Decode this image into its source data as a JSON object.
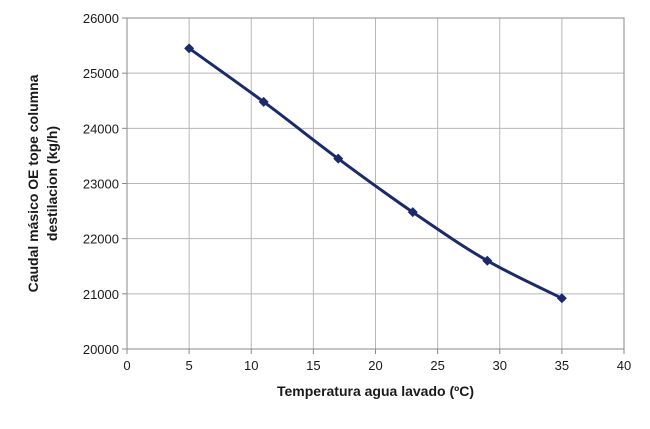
{
  "chart_data": {
    "type": "line",
    "title": "",
    "xlabel": "Temperatura agua lavado (ºC)",
    "ylabel_lines": [
      "Caudal másico  OE tope columna",
      "destilacion (kg/h)"
    ],
    "xlim": [
      0,
      40
    ],
    "ylim": [
      20000,
      26000
    ],
    "x_ticks": [
      0,
      5,
      10,
      15,
      20,
      25,
      30,
      35,
      40
    ],
    "y_ticks": [
      20000,
      21000,
      22000,
      23000,
      24000,
      25000,
      26000
    ],
    "grid": true,
    "legend": "none",
    "series": [
      {
        "x": [
          5,
          11,
          17,
          23,
          29,
          35
        ],
        "y": [
          25450,
          24480,
          23450,
          22480,
          21600,
          20920
        ],
        "color": "#1a2a6c",
        "marker": "diamond"
      }
    ]
  }
}
